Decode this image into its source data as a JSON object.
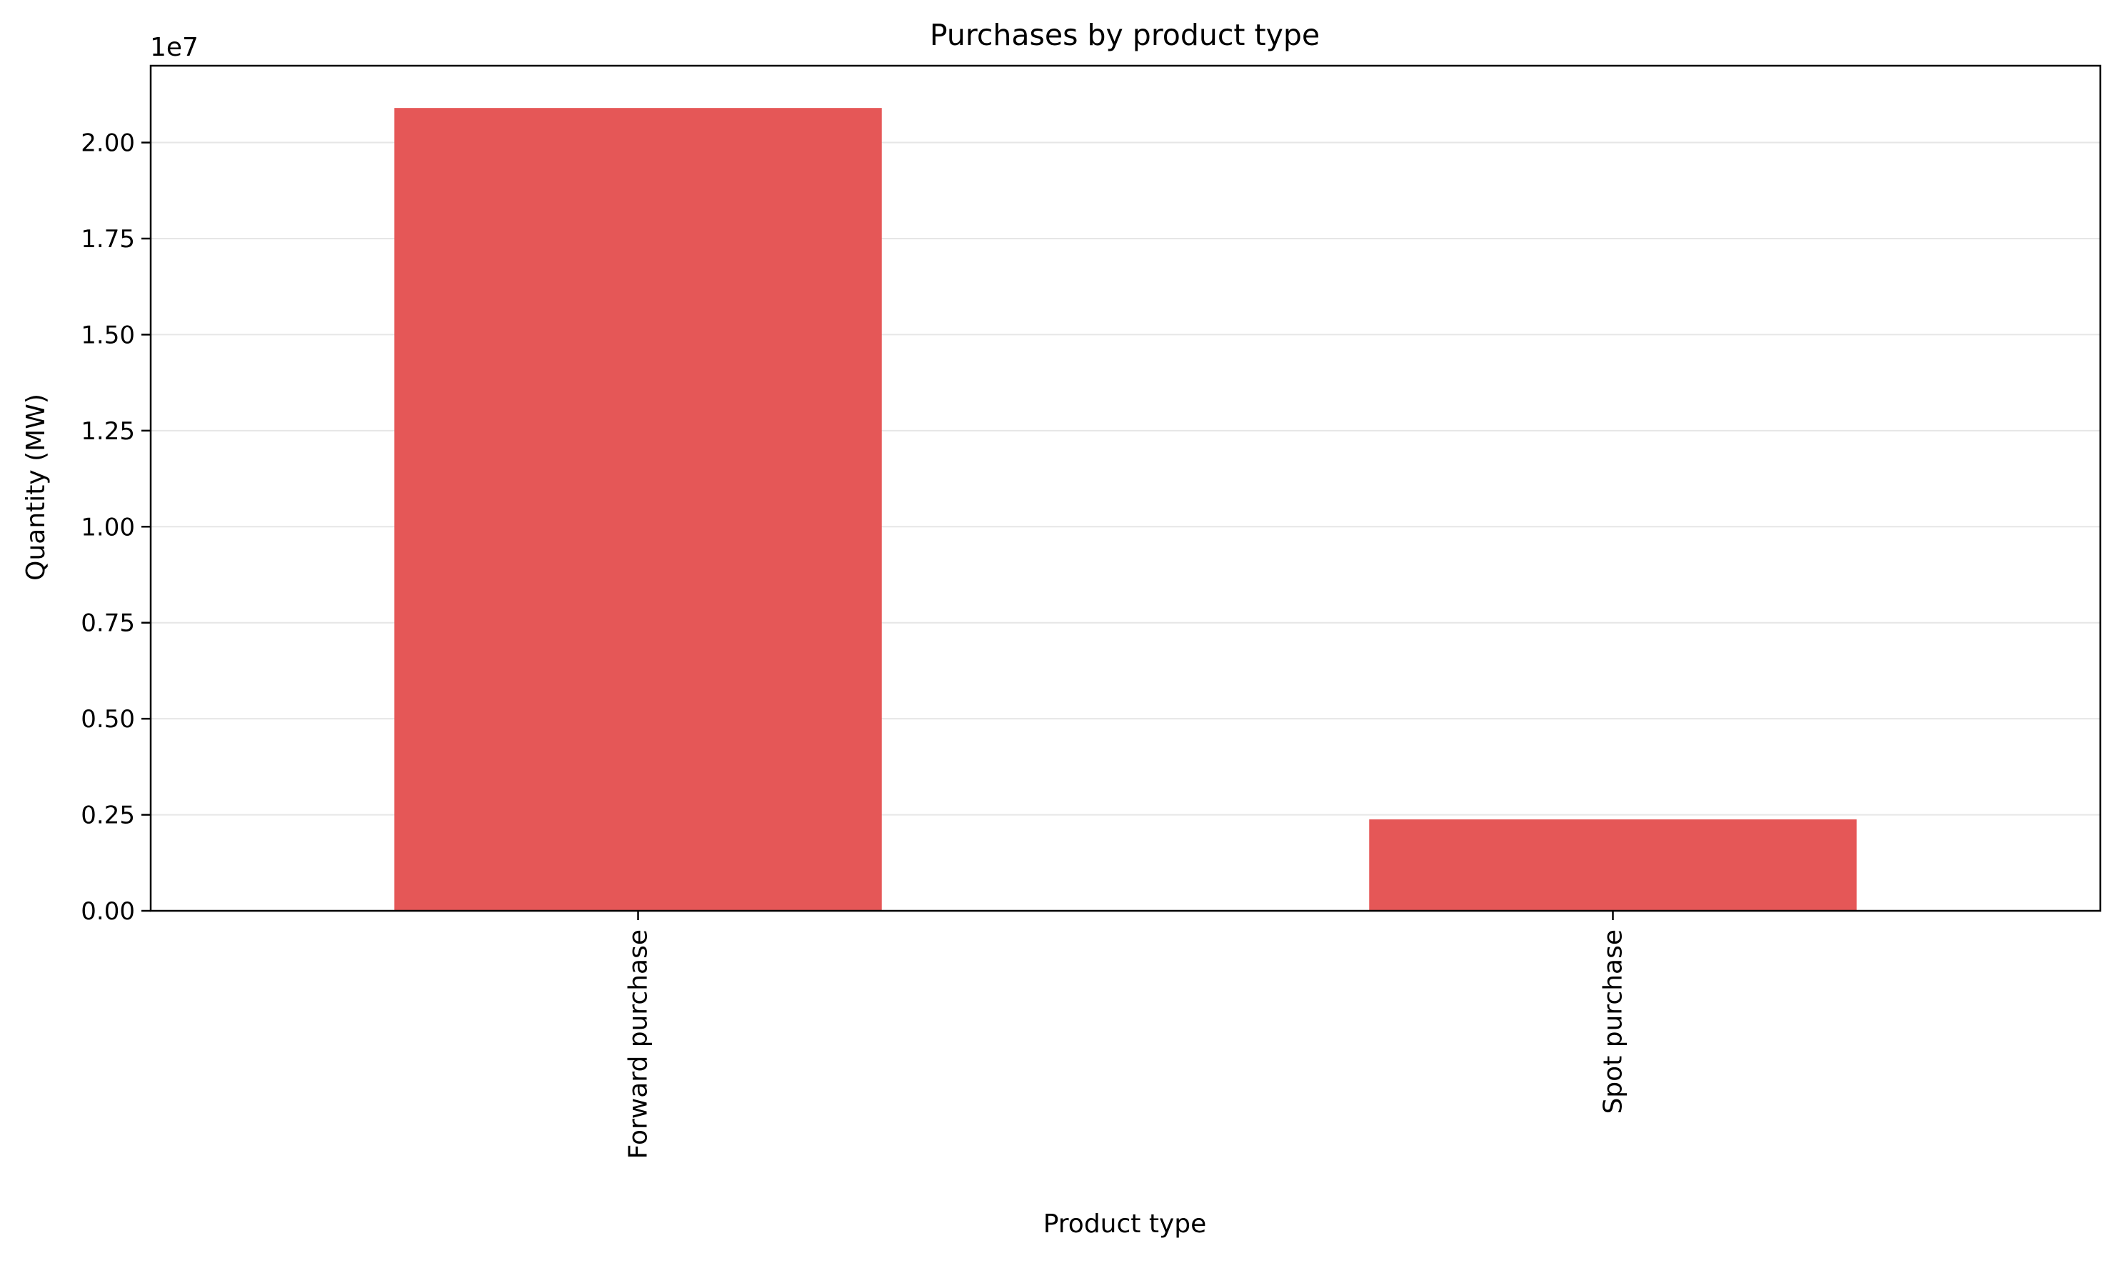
{
  "chart_data": {
    "type": "bar",
    "title": "Purchases by product type",
    "xlabel": "Product type",
    "ylabel": "Quantity (MW)",
    "y_offset_label": "1e7",
    "scale_factor": 10000000,
    "categories": [
      "Forward purchase",
      "Spot purchase"
    ],
    "values": [
      20900000,
      2380000
    ],
    "ylim": [
      0,
      22000000
    ],
    "yticks": [
      0,
      2500000,
      5000000,
      7500000,
      10000000,
      12500000,
      15000000,
      17500000,
      20000000
    ],
    "ytick_labels": [
      "0.00",
      "0.25",
      "0.50",
      "0.75",
      "1.00",
      "1.25",
      "1.50",
      "1.75",
      "2.00"
    ],
    "grid": {
      "y": true,
      "x": false
    },
    "bar_color": "#e55757",
    "grid_color": "#e6e6e6",
    "legend": null
  }
}
